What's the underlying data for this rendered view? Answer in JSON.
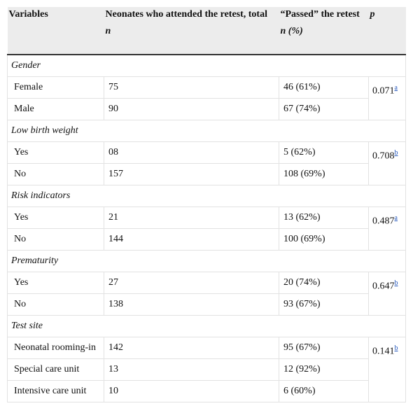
{
  "table": {
    "header": {
      "variables": "Variables",
      "total": "Neonates who attended the retest, total",
      "total_unit": "n",
      "passed": "“Passed” the retest",
      "passed_unit": "n (%)",
      "p": "p"
    },
    "groups": [
      {
        "name": "Gender",
        "p": "0.071",
        "p_note": "a",
        "rows": [
          [
            "Female",
            "75",
            "46 (61%)"
          ],
          [
            "Male",
            "90",
            "67 (74%)"
          ]
        ]
      },
      {
        "name": "Low birth weight",
        "p": "0.708",
        "p_note": "b",
        "rows": [
          [
            "Yes",
            "08",
            "5 (62%)"
          ],
          [
            "No",
            "157",
            "108 (69%)"
          ]
        ]
      },
      {
        "name": "Risk indicators",
        "p": "0.487",
        "p_note": "a",
        "rows": [
          [
            "Yes",
            "21",
            "13 (62%)"
          ],
          [
            "No",
            "144",
            "100 (69%)"
          ]
        ]
      },
      {
        "name": "Prematurity",
        "p": "0.647",
        "p_note": "b",
        "rows": [
          [
            "Yes",
            "27",
            "20 (74%)"
          ],
          [
            "No",
            "138",
            "93 (67%)"
          ]
        ]
      },
      {
        "name": "Test site",
        "p": "0.141",
        "p_note": "b",
        "rows": [
          [
            "Neonatal rooming-in",
            "142",
            "95 (67%)"
          ],
          [
            "Special care unit",
            "13",
            "12 (92%)"
          ],
          [
            "Intensive care unit",
            "10",
            "6 (60%)"
          ]
        ]
      }
    ]
  }
}
